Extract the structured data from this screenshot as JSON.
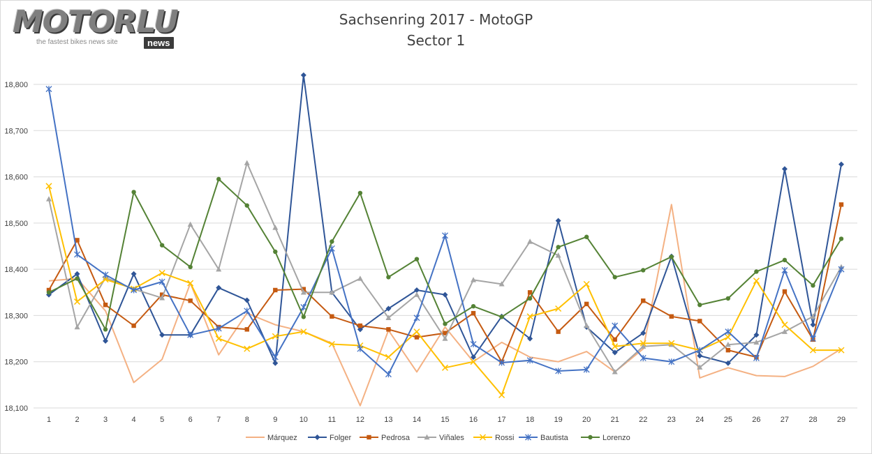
{
  "logo": {
    "brand": "MOTORLU",
    "tagline": "the fastest bikes news site",
    "badge": "news"
  },
  "chart_data": {
    "type": "line",
    "title": "Sachsenring 2017 - MotoGP",
    "subtitle": "Sector 1",
    "xlabel": "",
    "ylabel": "",
    "ylim": [
      18100,
      18800
    ],
    "yticks": [
      "18,100",
      "18,200",
      "18,300",
      "18,400",
      "18,500",
      "18,600",
      "18,700",
      "18,800"
    ],
    "ytick_values": [
      18100,
      18200,
      18300,
      18400,
      18500,
      18600,
      18700,
      18800
    ],
    "x": [
      "1",
      "2",
      "3",
      "4",
      "5",
      "6",
      "7",
      "8",
      "9",
      "10",
      "11",
      "12",
      "13",
      "14",
      "15",
      "16",
      "17",
      "18",
      "19",
      "20",
      "21",
      "22",
      "23",
      "24",
      "25",
      "26",
      "27",
      "28",
      "29"
    ],
    "grid": "horizontal",
    "legend": "bottom",
    "series": [
      {
        "name": "Márquez",
        "color": "#f4b183",
        "marker": "none",
        "values": [
          18375,
          18380,
          18310,
          18155,
          18205,
          18370,
          18215,
          18305,
          18280,
          18265,
          18240,
          18105,
          18268,
          18178,
          18275,
          18200,
          18242,
          18210,
          18200,
          18222,
          18178,
          18228,
          18540,
          18165,
          18187,
          18170,
          18168,
          18190,
          18228
        ]
      },
      {
        "name": "Folger",
        "color": "#2f5597",
        "marker": "diamond",
        "values": [
          18345,
          18390,
          18245,
          18390,
          18258,
          18258,
          18360,
          18333,
          18197,
          18820,
          18350,
          18270,
          18315,
          18355,
          18345,
          18210,
          18298,
          18250,
          18505,
          18275,
          18220,
          18262,
          18428,
          18213,
          18197,
          18258,
          18617,
          18280,
          18627
        ]
      },
      {
        "name": "Pedrosa",
        "color": "#c55a11",
        "marker": "square",
        "values": [
          18355,
          18463,
          18323,
          18278,
          18345,
          18332,
          18275,
          18270,
          18355,
          18357,
          18298,
          18278,
          18270,
          18253,
          18262,
          18305,
          18200,
          18350,
          18265,
          18325,
          18248,
          18332,
          18298,
          18288,
          18225,
          18210,
          18352,
          18248,
          18540
        ]
      },
      {
        "name": "Viñales",
        "color": "#a5a5a5",
        "marker": "triangle",
        "values": [
          18552,
          18275,
          18382,
          18357,
          18338,
          18497,
          18400,
          18630,
          18490,
          18350,
          18350,
          18380,
          18295,
          18345,
          18250,
          18377,
          18368,
          18460,
          18430,
          18278,
          18178,
          18233,
          18237,
          18188,
          18237,
          18242,
          18265,
          18298,
          18405
        ]
      },
      {
        "name": "Rossi",
        "color": "#ffc000",
        "marker": "x",
        "values": [
          18580,
          18330,
          18378,
          18358,
          18392,
          18370,
          18250,
          18228,
          18255,
          18265,
          18238,
          18235,
          18210,
          18265,
          18187,
          18200,
          18128,
          18298,
          18315,
          18368,
          18233,
          18240,
          18240,
          18225,
          18253,
          18375,
          18280,
          18225,
          18225
        ]
      },
      {
        "name": "Bautista",
        "color": "#4472c4",
        "marker": "star",
        "values": [
          18790,
          18432,
          18388,
          18355,
          18373,
          18258,
          18272,
          18310,
          18210,
          18318,
          18445,
          18228,
          18173,
          18295,
          18473,
          18238,
          18198,
          18203,
          18180,
          18183,
          18278,
          18208,
          18200,
          18225,
          18265,
          18208,
          18398,
          18250,
          18400
        ]
      },
      {
        "name": "Lorenzo",
        "color": "#548235",
        "marker": "circle",
        "values": [
          18350,
          18380,
          18270,
          18567,
          18452,
          18405,
          18595,
          18538,
          18438,
          18297,
          18460,
          18565,
          18383,
          18422,
          18282,
          18320,
          18297,
          18337,
          18448,
          18470,
          18383,
          18398,
          18427,
          18323,
          18337,
          18395,
          18420,
          18365,
          18466
        ]
      }
    ]
  }
}
